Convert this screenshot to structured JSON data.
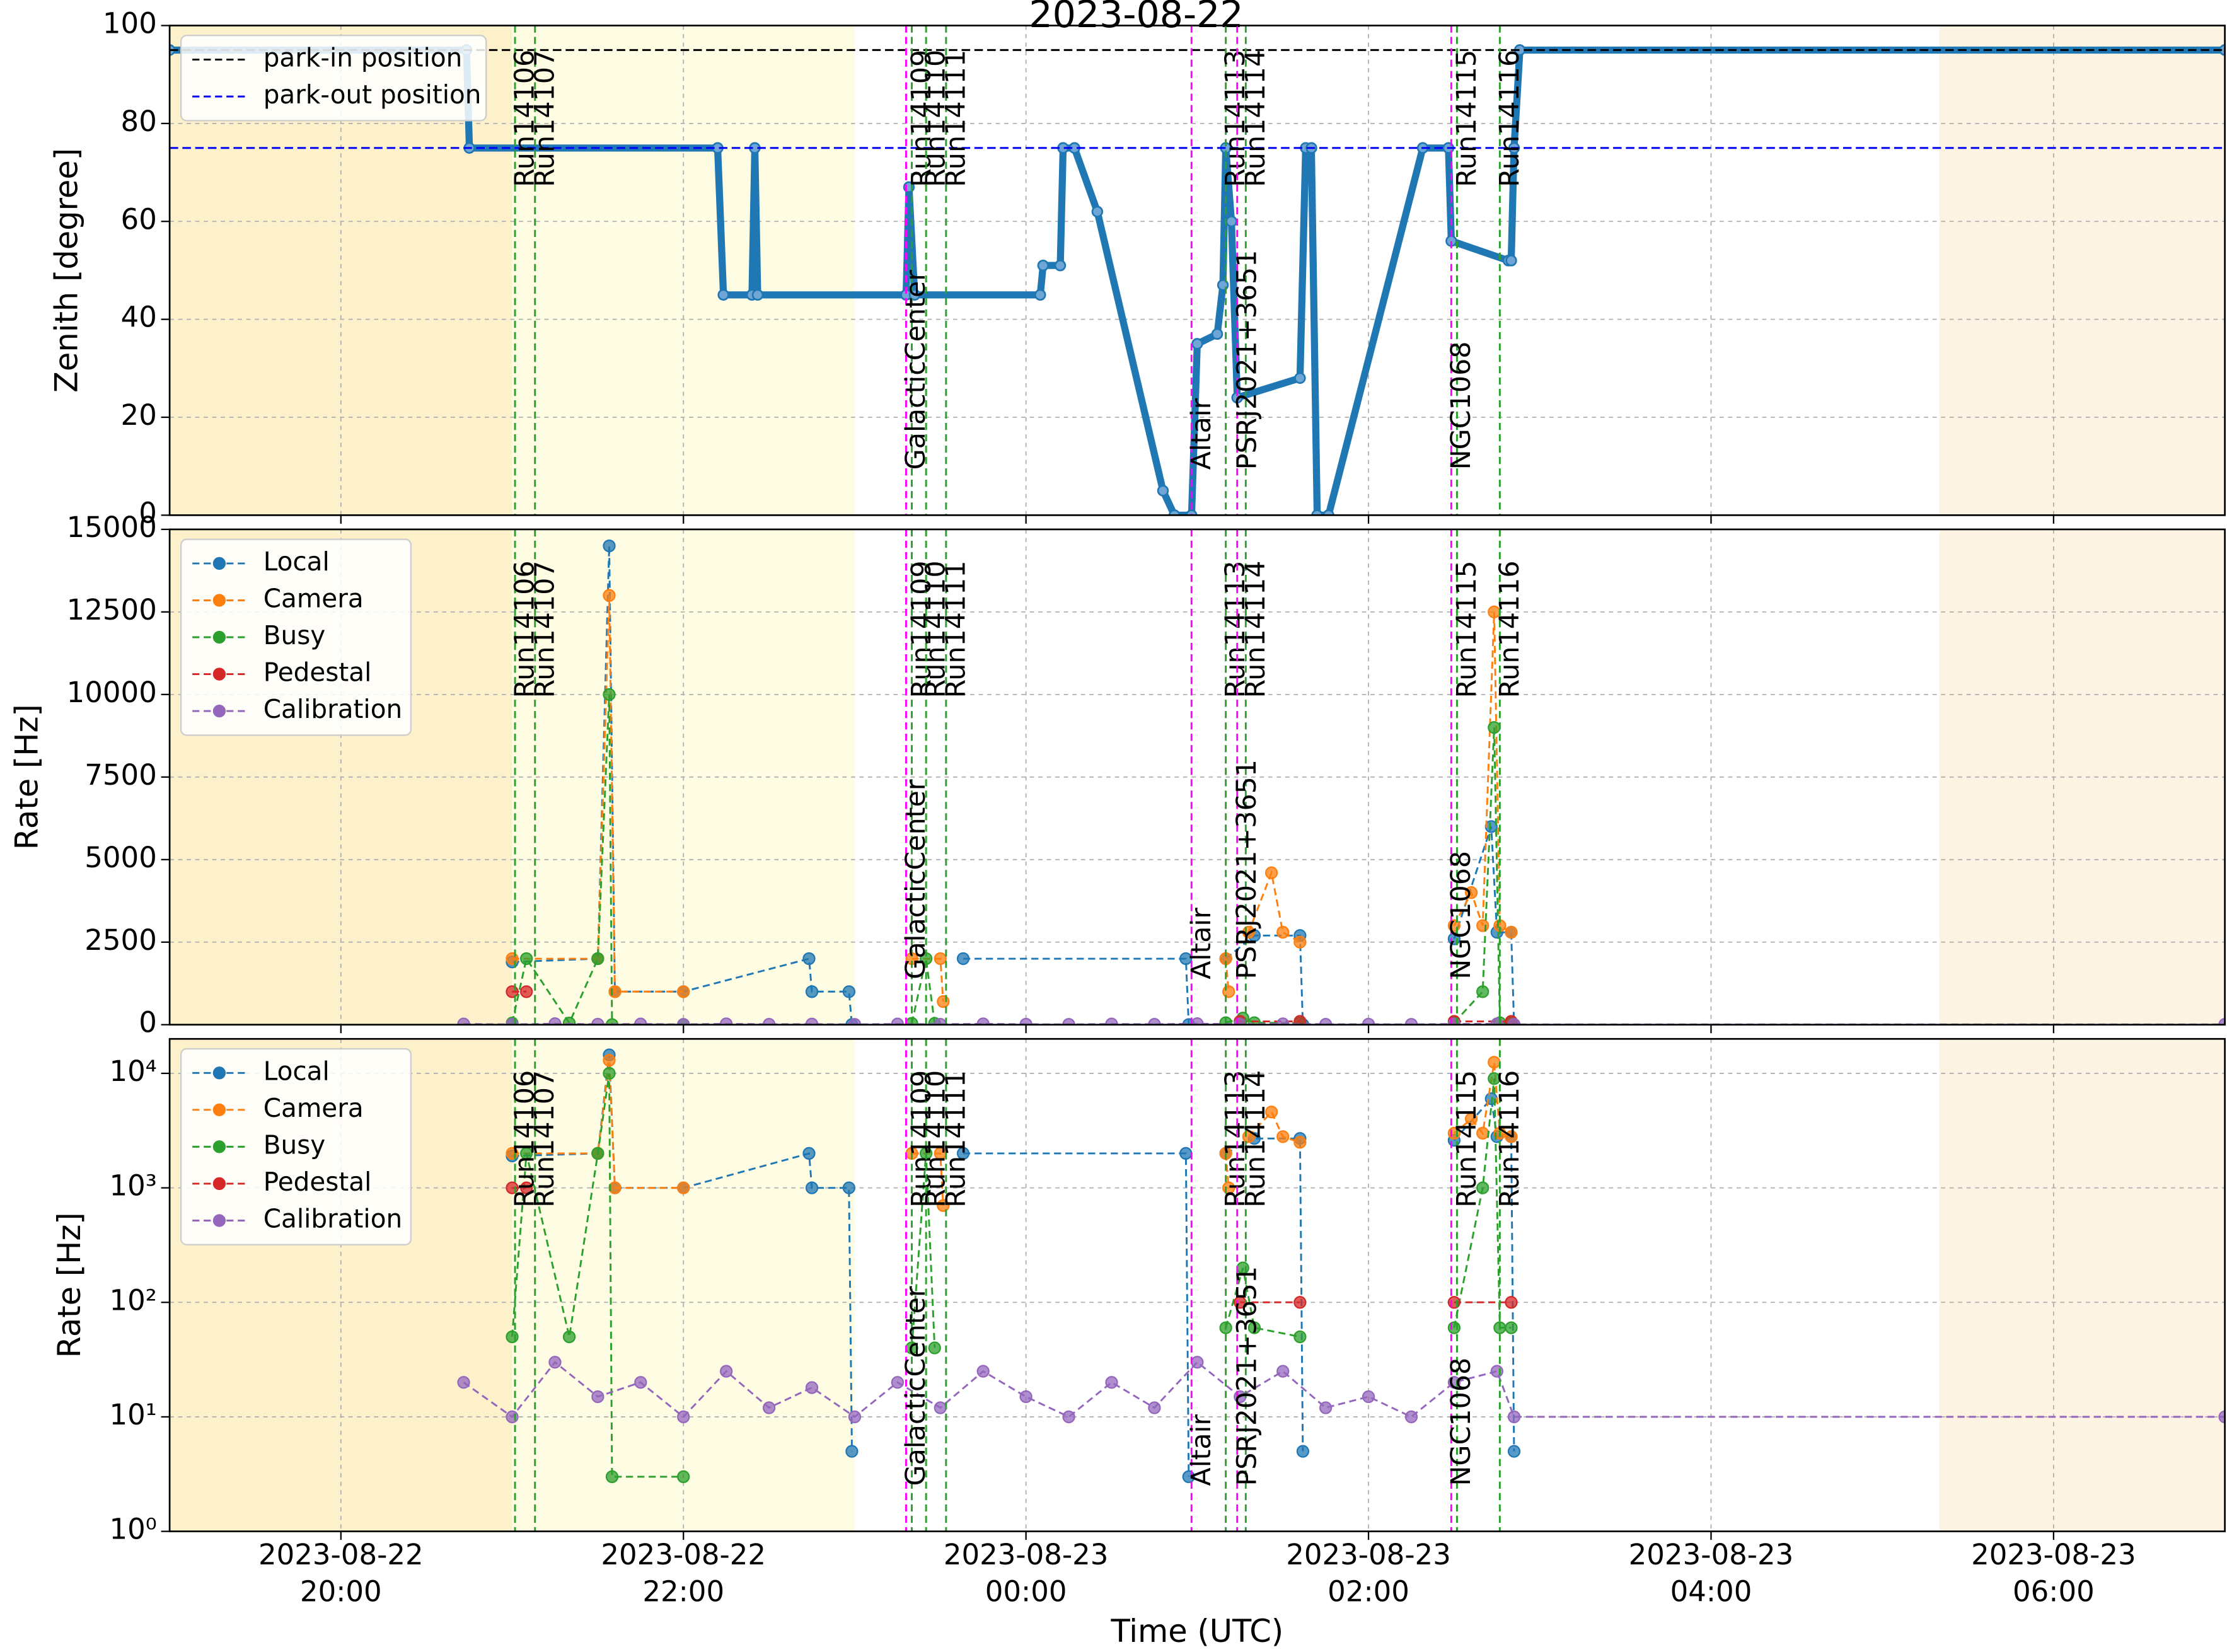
{
  "chart_data": [
    {
      "type": "line",
      "title": "2023-08-22",
      "ylabel": "Zenith [degree]",
      "ylim": [
        0,
        100
      ],
      "yticks": [
        0,
        20,
        40,
        60,
        80,
        100
      ],
      "grid": true,
      "legend": "upper left",
      "color": "#1f77b4",
      "x": [
        "2023-08-22 19:00",
        "2023-08-22 20:44",
        "2023-08-22 20:45",
        "2023-08-22 22:12",
        "2023-08-22 22:14",
        "2023-08-22 22:24",
        "2023-08-22 22:25",
        "2023-08-22 22:26",
        "2023-08-22 23:18",
        "2023-08-22 23:19",
        "2023-08-22 23:21",
        "2023-08-23 00:05",
        "2023-08-23 00:06",
        "2023-08-23 00:12",
        "2023-08-23 00:13",
        "2023-08-23 00:17",
        "2023-08-23 00:25",
        "2023-08-23 00:48",
        "2023-08-23 00:52",
        "2023-08-23 00:58",
        "2023-08-23 01:00",
        "2023-08-23 01:07",
        "2023-08-23 01:09",
        "2023-08-23 01:10",
        "2023-08-23 01:12",
        "2023-08-23 01:14",
        "2023-08-23 01:36",
        "2023-08-23 01:38",
        "2023-08-23 01:40",
        "2023-08-23 01:42",
        "2023-08-23 01:46",
        "2023-08-23 02:19",
        "2023-08-23 02:28",
        "2023-08-23 02:29",
        "2023-08-23 02:49",
        "2023-08-23 02:50",
        "2023-08-23 02:51",
        "2023-08-23 02:53",
        "2023-08-23 07:00"
      ],
      "values": [
        95,
        95,
        75,
        75,
        45,
        45,
        75,
        45,
        45,
        67,
        45,
        45,
        51,
        51,
        75,
        75,
        62,
        5,
        0,
        0,
        35,
        37,
        47,
        75,
        60,
        24,
        28,
        75,
        75,
        0,
        0,
        75,
        75,
        56,
        52,
        52,
        75,
        95,
        95
      ],
      "hlines": [
        {
          "name": "park-in position",
          "y": 95,
          "color": "#000000"
        },
        {
          "name": "park-out position",
          "y": 75,
          "color": "#0000ff"
        }
      ],
      "shaded_spans": [
        {
          "start": "2023-08-22 19:00",
          "end": "2023-08-22 21:00",
          "color": "#fdf1cc"
        },
        {
          "start": "2023-08-22 21:00",
          "end": "2023-08-22 23:00",
          "color": "#fefce3"
        },
        {
          "start": "2023-08-23 05:20",
          "end": "2023-08-23 07:00",
          "color": "#fdf3e2"
        }
      ],
      "run_lines": {
        "color": "#2ca02c",
        "lines": [
          {
            "label": "Run14106",
            "x": "2023-08-22 21:01"
          },
          {
            "label": "Run14107",
            "x": "2023-08-22 21:08"
          },
          {
            "label": "Run14109",
            "x": "2023-08-22 23:20"
          },
          {
            "label": "Run14110",
            "x": "2023-08-22 23:25"
          },
          {
            "label": "Run14111",
            "x": "2023-08-22 23:32"
          },
          {
            "label": "Run14113",
            "x": "2023-08-23 01:10"
          },
          {
            "label": "Run14114",
            "x": "2023-08-23 01:17"
          },
          {
            "label": "Run14115",
            "x": "2023-08-23 02:31"
          },
          {
            "label": "Run14116",
            "x": "2023-08-23 02:46"
          }
        ]
      },
      "source_lines": {
        "color": "#ff00ff",
        "lines": [
          {
            "label": "GalacticCenter",
            "x": "2023-08-22 23:18"
          },
          {
            "label": "Altair",
            "x": "2023-08-23 00:58"
          },
          {
            "label": "PSRJ2021+3651",
            "x": "2023-08-23 01:14"
          },
          {
            "label": "NGC1068",
            "x": "2023-08-23 02:29"
          }
        ]
      }
    },
    {
      "type": "line",
      "ylabel": "Rate [Hz]",
      "ylim": [
        0,
        15000
      ],
      "yticks": [
        0,
        2500,
        5000,
        7500,
        10000,
        12500,
        15000
      ],
      "grid": true,
      "legend": "upper left",
      "series": [
        {
          "name": "Local",
          "color": "#1f77b4",
          "x": [
            "2023-08-22 21:00",
            "2023-08-22 21:30",
            "2023-08-22 21:34",
            "2023-08-22 21:36",
            "2023-08-22 22:00",
            "2023-08-22 22:44",
            "2023-08-22 22:45",
            "2023-08-22 22:58",
            "2023-08-22 22:59",
            "2023-08-22 23:10",
            "2023-08-22 23:38",
            "2023-08-23 00:56",
            "2023-08-23 00:57",
            "2023-08-23 01:09",
            "2023-08-23 01:10",
            "2023-08-23 01:20",
            "2023-08-23 01:36",
            "2023-08-23 01:37",
            "2023-08-23 02:29",
            "2023-08-23 02:30",
            "2023-08-23 02:43",
            "2023-08-23 02:45",
            "2023-08-23 02:50",
            "2023-08-23 02:51"
          ],
          "values": [
            1900,
            2000,
            14500,
            1000,
            1000,
            2000,
            1000,
            1000,
            5,
            null,
            2000,
            2000,
            3,
            null,
            2000,
            2700,
            2700,
            5,
            null,
            2600,
            6000,
            2800,
            2800,
            5
          ]
        },
        {
          "name": "Camera",
          "color": "#ff7f0e",
          "x": [
            "2023-08-22 21:00",
            "2023-08-22 21:30",
            "2023-08-22 21:34",
            "2023-08-22 21:36",
            "2023-08-22 22:00",
            "2023-08-22 22:01",
            "2023-08-22 23:20",
            "2023-08-22 23:30",
            "2023-08-22 23:31",
            "2023-08-22 23:32",
            "2023-08-23 01:10",
            "2023-08-23 01:11",
            "2023-08-23 01:12",
            "2023-08-23 01:18",
            "2023-08-23 01:26",
            "2023-08-23 01:30",
            "2023-08-23 01:36",
            "2023-08-23 01:37",
            "2023-08-23 02:30",
            "2023-08-23 02:36",
            "2023-08-23 02:40",
            "2023-08-23 02:44",
            "2023-08-23 02:46",
            "2023-08-23 02:50",
            "2023-08-23 02:51"
          ],
          "values": [
            2000,
            2000,
            13000,
            1000,
            1000,
            null,
            2000,
            2000,
            700,
            null,
            2000,
            1000,
            null,
            2800,
            4600,
            2800,
            2500,
            null,
            3000,
            4000,
            3000,
            12500,
            3000,
            2800,
            null
          ]
        },
        {
          "name": "Busy",
          "color": "#2ca02c",
          "x": [
            "2023-08-22 21:00",
            "2023-08-22 21:05",
            "2023-08-22 21:20",
            "2023-08-22 21:30",
            "2023-08-22 21:34",
            "2023-08-22 21:35",
            "2023-08-22 22:00",
            "2023-08-22 22:01",
            "2023-08-22 23:20",
            "2023-08-22 23:25",
            "2023-08-22 23:28",
            "2023-08-22 23:31",
            "2023-08-23 01:10",
            "2023-08-23 01:16",
            "2023-08-23 01:20",
            "2023-08-23 01:36",
            "2023-08-23 01:37",
            "2023-08-23 02:30",
            "2023-08-23 02:40",
            "2023-08-23 02:44",
            "2023-08-23 02:46",
            "2023-08-23 02:50",
            "2023-08-23 02:51"
          ],
          "values": [
            50,
            2000,
            50,
            2000,
            10000,
            3,
            3,
            null,
            40,
            2000,
            40,
            null,
            60,
            200,
            60,
            50,
            null,
            60,
            1000,
            9000,
            60,
            60,
            null
          ]
        },
        {
          "name": "Pedestal",
          "color": "#d62728",
          "x": [
            "2023-08-22 21:00",
            "2023-08-22 21:05",
            "2023-08-22 21:06",
            "2023-08-23 01:15",
            "2023-08-23 01:36",
            "2023-08-23 01:37",
            "2023-08-23 02:30",
            "2023-08-23 02:50",
            "2023-08-23 02:51"
          ],
          "values": [
            1000,
            1000,
            null,
            100,
            100,
            null,
            100,
            100,
            null
          ]
        },
        {
          "name": "Calibration",
          "color": "#9467bd",
          "x": [
            "2023-08-22 20:43",
            "2023-08-22 21:00",
            "2023-08-22 21:15",
            "2023-08-22 21:30",
            "2023-08-22 21:45",
            "2023-08-22 22:00",
            "2023-08-22 22:15",
            "2023-08-22 22:30",
            "2023-08-22 22:45",
            "2023-08-22 23:00",
            "2023-08-22 23:15",
            "2023-08-22 23:30",
            "2023-08-22 23:45",
            "2023-08-23 00:00",
            "2023-08-23 00:15",
            "2023-08-23 00:30",
            "2023-08-23 00:45",
            "2023-08-23 01:00",
            "2023-08-23 01:15",
            "2023-08-23 01:30",
            "2023-08-23 01:45",
            "2023-08-23 02:00",
            "2023-08-23 02:15",
            "2023-08-23 02:30",
            "2023-08-23 02:45",
            "2023-08-23 02:51",
            "2023-08-23 07:00"
          ],
          "values": [
            20,
            10,
            30,
            15,
            20,
            10,
            25,
            12,
            18,
            10,
            20,
            12,
            25,
            15,
            10,
            20,
            12,
            30,
            15,
            25,
            12,
            15,
            10,
            20,
            25,
            10,
            10
          ]
        }
      ]
    },
    {
      "type": "line",
      "ylabel": "Rate [Hz]",
      "xlabel": "Time (UTC)",
      "log_scale": "y",
      "grid": true,
      "legend": "upper left",
      "xlim": [
        "2023-08-22 19:00",
        "2023-08-23 07:00"
      ],
      "xticks": [
        {
          "value": "2023-08-22 20:00",
          "label": "2023-08-22\n20:00"
        },
        {
          "value": "2023-08-22 22:00",
          "label": "2023-08-22\n22:00"
        },
        {
          "value": "2023-08-23 00:00",
          "label": "2023-08-23\n00:00"
        },
        {
          "value": "2023-08-23 02:00",
          "label": "2023-08-23\n02:00"
        },
        {
          "value": "2023-08-23 04:00",
          "label": "2023-08-23\n04:00"
        },
        {
          "value": "2023-08-23 06:00",
          "label": "2023-08-23\n06:00"
        }
      ],
      "ylim": [
        1,
        20000
      ],
      "yticks": [
        {
          "value": 1,
          "label": "10⁰"
        },
        {
          "value": 10,
          "label": "10¹"
        },
        {
          "value": 100,
          "label": "10²"
        },
        {
          "value": 1000,
          "label": "10³"
        },
        {
          "value": 10000,
          "label": "10⁴"
        }
      ],
      "series": [
        {
          "name": "Local",
          "color": "#1f77b4",
          "x": [
            "2023-08-22 21:00",
            "2023-08-22 21:30",
            "2023-08-22 21:34",
            "2023-08-22 21:36",
            "2023-08-22 22:00",
            "2023-08-22 22:44",
            "2023-08-22 22:45",
            "2023-08-22 22:58",
            "2023-08-22 22:59",
            "2023-08-22 23:10",
            "2023-08-22 23:38",
            "2023-08-23 00:56",
            "2023-08-23 00:57",
            "2023-08-23 01:09",
            "2023-08-23 01:10",
            "2023-08-23 01:20",
            "2023-08-23 01:36",
            "2023-08-23 01:37",
            "2023-08-23 02:29",
            "2023-08-23 02:30",
            "2023-08-23 02:43",
            "2023-08-23 02:45",
            "2023-08-23 02:50",
            "2023-08-23 02:51"
          ],
          "values": [
            1900,
            2000,
            14500,
            1000,
            1000,
            2000,
            1000,
            1000,
            5,
            null,
            2000,
            2000,
            3,
            null,
            2000,
            2700,
            2700,
            5,
            null,
            2600,
            6000,
            2800,
            2800,
            5
          ]
        },
        {
          "name": "Camera",
          "color": "#ff7f0e",
          "x": [
            "2023-08-22 21:00",
            "2023-08-22 21:30",
            "2023-08-22 21:34",
            "2023-08-22 21:36",
            "2023-08-22 22:00",
            "2023-08-22 22:01",
            "2023-08-22 23:20",
            "2023-08-22 23:30",
            "2023-08-22 23:31",
            "2023-08-22 23:32",
            "2023-08-23 01:10",
            "2023-08-23 01:11",
            "2023-08-23 01:12",
            "2023-08-23 01:18",
            "2023-08-23 01:26",
            "2023-08-23 01:30",
            "2023-08-23 01:36",
            "2023-08-23 01:37",
            "2023-08-23 02:30",
            "2023-08-23 02:36",
            "2023-08-23 02:40",
            "2023-08-23 02:44",
            "2023-08-23 02:46",
            "2023-08-23 02:50",
            "2023-08-23 02:51"
          ],
          "values": [
            2000,
            2000,
            13000,
            1000,
            1000,
            null,
            2000,
            2000,
            700,
            null,
            2000,
            1000,
            null,
            2800,
            4600,
            2800,
            2500,
            null,
            3000,
            4000,
            3000,
            12500,
            3000,
            2800,
            null
          ]
        },
        {
          "name": "Busy",
          "color": "#2ca02c",
          "x": [
            "2023-08-22 21:00",
            "2023-08-22 21:05",
            "2023-08-22 21:20",
            "2023-08-22 21:30",
            "2023-08-22 21:34",
            "2023-08-22 21:35",
            "2023-08-22 22:00",
            "2023-08-22 22:01",
            "2023-08-22 23:20",
            "2023-08-22 23:25",
            "2023-08-22 23:28",
            "2023-08-22 23:31",
            "2023-08-23 01:10",
            "2023-08-23 01:16",
            "2023-08-23 01:20",
            "2023-08-23 01:36",
            "2023-08-23 01:37",
            "2023-08-23 02:30",
            "2023-08-23 02:40",
            "2023-08-23 02:44",
            "2023-08-23 02:46",
            "2023-08-23 02:50",
            "2023-08-23 02:51"
          ],
          "values": [
            50,
            2000,
            50,
            2000,
            10000,
            3,
            3,
            null,
            40,
            2000,
            40,
            null,
            60,
            200,
            60,
            50,
            null,
            60,
            1000,
            9000,
            60,
            60,
            null
          ]
        },
        {
          "name": "Pedestal",
          "color": "#d62728",
          "x": [
            "2023-08-22 21:00",
            "2023-08-22 21:05",
            "2023-08-22 21:06",
            "2023-08-23 01:15",
            "2023-08-23 01:36",
            "2023-08-23 01:37",
            "2023-08-23 02:30",
            "2023-08-23 02:50",
            "2023-08-23 02:51"
          ],
          "values": [
            1000,
            1000,
            null,
            100,
            100,
            null,
            100,
            100,
            null
          ]
        },
        {
          "name": "Calibration",
          "color": "#9467bd",
          "x": [
            "2023-08-22 20:43",
            "2023-08-22 21:00",
            "2023-08-22 21:15",
            "2023-08-22 21:30",
            "2023-08-22 21:45",
            "2023-08-22 22:00",
            "2023-08-22 22:15",
            "2023-08-22 22:30",
            "2023-08-22 22:45",
            "2023-08-22 23:00",
            "2023-08-22 23:15",
            "2023-08-22 23:30",
            "2023-08-22 23:45",
            "2023-08-23 00:00",
            "2023-08-23 00:15",
            "2023-08-23 00:30",
            "2023-08-23 00:45",
            "2023-08-23 01:00",
            "2023-08-23 01:15",
            "2023-08-23 01:30",
            "2023-08-23 01:45",
            "2023-08-23 02:00",
            "2023-08-23 02:15",
            "2023-08-23 02:30",
            "2023-08-23 02:45",
            "2023-08-23 02:51",
            "2023-08-23 07:00"
          ],
          "values": [
            20,
            10,
            30,
            15,
            20,
            10,
            25,
            12,
            18,
            10,
            20,
            12,
            25,
            15,
            10,
            20,
            12,
            30,
            15,
            25,
            12,
            15,
            10,
            20,
            25,
            10,
            10
          ]
        }
      ]
    }
  ]
}
